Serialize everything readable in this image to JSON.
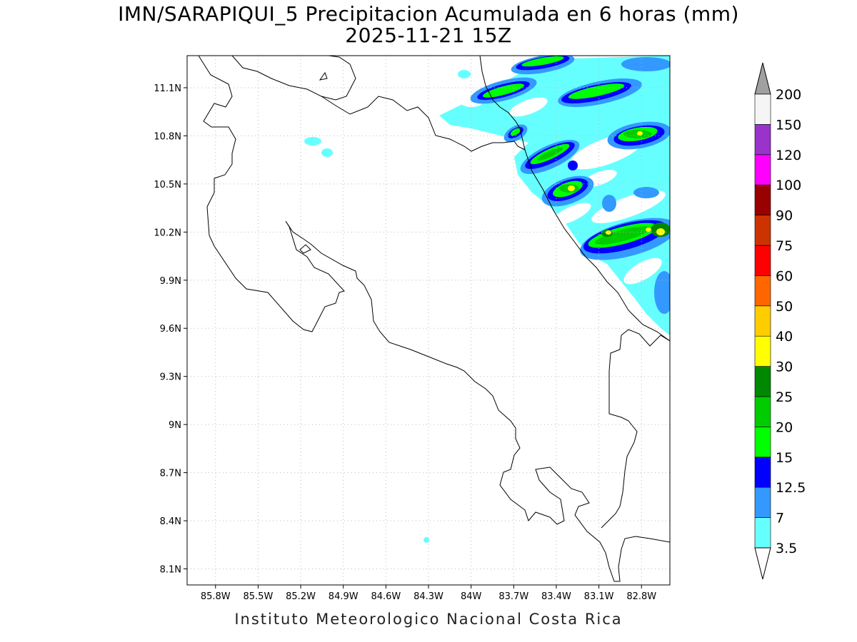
{
  "title": {
    "line1": "IMN/SARAPIQUI_5 Precipitacion Acumulada en 6 horas (mm)",
    "line2": "2025-11-21 15Z"
  },
  "credit": "Instituto Meteorologico Nacional Costa Rica",
  "map": {
    "projection": "lat-lon",
    "lon_range": [
      -86.0,
      -82.6
    ],
    "lat_range": [
      8.0,
      11.3
    ],
    "grid": true,
    "lon_ticks": [
      "85.8W",
      "85.5W",
      "85.2W",
      "84.9W",
      "84.6W",
      "84.3W",
      "84W",
      "83.7W",
      "83.4W",
      "83.1W",
      "82.8W"
    ],
    "lat_ticks": [
      "11.1N",
      "10.8N",
      "10.5N",
      "10.2N",
      "9.9N",
      "9.6N",
      "9.3N",
      "9N",
      "8.7N",
      "8.4N",
      "8.1N"
    ],
    "lon_values": [
      -85.8,
      -85.5,
      -85.2,
      -84.9,
      -84.6,
      -84.3,
      -84.0,
      -83.7,
      -83.4,
      -83.1,
      -82.8
    ],
    "lat_values": [
      11.1,
      10.8,
      10.5,
      10.2,
      9.9,
      9.6,
      9.3,
      9.0,
      8.7,
      8.4,
      8.1
    ]
  },
  "legend": {
    "labels": [
      "3.5",
      "7",
      "12.5",
      "15",
      "20",
      "25",
      "30",
      "40",
      "50",
      "60",
      "75",
      "90",
      "100",
      "120",
      "150",
      "200"
    ],
    "colors": [
      "#66ffff",
      "#3399ff",
      "#0000ff",
      "#00ff00",
      "#00cc00",
      "#008800",
      "#ffff00",
      "#ffcc00",
      "#ff6600",
      "#ff0000",
      "#cc3300",
      "#990000",
      "#ff00ff",
      "#9933cc",
      "#f5f5f5"
    ],
    "over_color": "#a0a0a0",
    "under_color": "#ffffff"
  },
  "precip_areas": [
    {
      "lon": -83.05,
      "lat": 11.07,
      "level": 2
    },
    {
      "lon": -82.95,
      "lat": 11.12,
      "level": 4
    },
    {
      "lon": -83.55,
      "lat": 11.06,
      "level": 3
    },
    {
      "lon": -83.3,
      "lat": 11.2,
      "level": 4
    },
    {
      "lon": -82.82,
      "lat": 10.83,
      "level": 5
    },
    {
      "lon": -83.45,
      "lat": 10.65,
      "level": 4
    },
    {
      "lon": -83.25,
      "lat": 10.48,
      "level": 6
    },
    {
      "lon": -83.15,
      "lat": 10.6,
      "level": 2
    },
    {
      "lon": -82.85,
      "lat": 10.2,
      "level": 6
    },
    {
      "lon": -82.75,
      "lat": 10.25,
      "level": 7
    },
    {
      "lon": -83.0,
      "lat": 10.2,
      "level": 5
    },
    {
      "lon": -82.7,
      "lat": 9.9,
      "level": 2
    },
    {
      "lon": -83.66,
      "lat": 10.82,
      "level": 4
    },
    {
      "lon": -82.95,
      "lat": 10.36,
      "level": 2
    }
  ]
}
